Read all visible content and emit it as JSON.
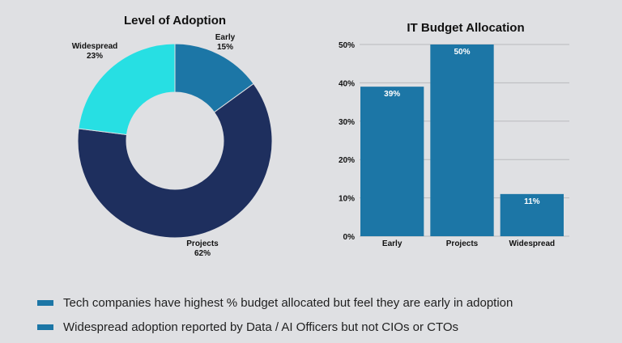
{
  "chart_data": [
    {
      "type": "pie",
      "title": "Level of Adoption",
      "categories": [
        "Early",
        "Projects",
        "Widespread"
      ],
      "values": [
        15,
        62,
        23
      ],
      "labels": [
        "15%",
        "62%",
        "23%"
      ],
      "colors": [
        "#1c76a6",
        "#1e2f5e",
        "#27dfe3"
      ],
      "donut": true
    },
    {
      "type": "bar",
      "title": "IT Budget Allocation",
      "categories": [
        "Early",
        "Projects",
        "Widespread"
      ],
      "values": [
        39,
        50,
        11
      ],
      "value_labels": [
        "39%",
        "50%",
        "11%"
      ],
      "ylim": [
        0,
        50
      ],
      "yticks": [
        "0%",
        "10%",
        "20%",
        "30%",
        "40%",
        "50%"
      ],
      "grid": true,
      "color": "#1c76a6"
    }
  ],
  "notes": [
    {
      "text": "Tech companies have highest % budget allocated but feel they are early in adoption",
      "color": "#1c76a6"
    },
    {
      "text": "Widespread adoption reported by Data / AI Officers but not CIOs or CTOs",
      "color": "#1c76a6"
    }
  ]
}
